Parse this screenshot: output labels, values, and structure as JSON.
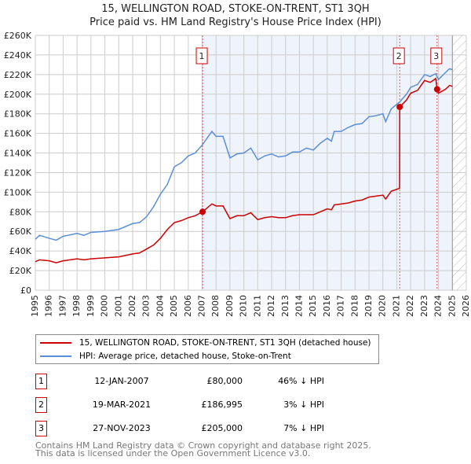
{
  "title": "15, WELLINGTON ROAD, STOKE-ON-TRENT, ST1 3QH",
  "subtitle": "Price paid vs. HM Land Registry's House Price Index (HPI)",
  "chart_data": {
    "type": "line",
    "xlim": [
      1995,
      2026
    ],
    "ylim": [
      0,
      260000
    ],
    "x_ticks": [
      "1995",
      "1996",
      "1997",
      "1998",
      "1999",
      "2000",
      "2001",
      "2002",
      "2003",
      "2004",
      "2005",
      "2006",
      "2007",
      "2008",
      "2009",
      "2010",
      "2011",
      "2012",
      "2013",
      "2014",
      "2015",
      "2016",
      "2017",
      "2018",
      "2019",
      "2020",
      "2021",
      "2022",
      "2023",
      "2024",
      "2025",
      "2026"
    ],
    "y_ticks": [
      "£0",
      "£20K",
      "£40K",
      "£60K",
      "£80K",
      "£100K",
      "£120K",
      "£140K",
      "£160K",
      "£180K",
      "£200K",
      "£220K",
      "£240K",
      "£260K"
    ],
    "grid": true,
    "shaded_region": [
      2007.03,
      2025.0
    ],
    "hatched_from": 2025.0,
    "series": [
      {
        "name": "15, WELLINGTON ROAD, STOKE-ON-TRENT, ST1 3QH (detached house)",
        "color": "#cc0000",
        "points": [
          [
            1995,
            29
          ],
          [
            1995.3,
            31
          ],
          [
            1996,
            30
          ],
          [
            1996.5,
            28
          ],
          [
            1997,
            30
          ],
          [
            1998,
            32
          ],
          [
            1998.5,
            31
          ],
          [
            1999,
            32
          ],
          [
            2000,
            33
          ],
          [
            2001,
            34
          ],
          [
            2002,
            37
          ],
          [
            2002.5,
            38
          ],
          [
            2003,
            42
          ],
          [
            2003.5,
            46
          ],
          [
            2004,
            53
          ],
          [
            2004.5,
            62
          ],
          [
            2005,
            69
          ],
          [
            2005.5,
            71
          ],
          [
            2006,
            74
          ],
          [
            2006.5,
            76
          ],
          [
            2007.03,
            80
          ],
          [
            2007.7,
            88
          ],
          [
            2008,
            86
          ],
          [
            2008.5,
            86
          ],
          [
            2009,
            73
          ],
          [
            2009.5,
            76
          ],
          [
            2010,
            76
          ],
          [
            2010.5,
            79
          ],
          [
            2011,
            72
          ],
          [
            2011.5,
            74
          ],
          [
            2012,
            75
          ],
          [
            2012.5,
            74
          ],
          [
            2013,
            74
          ],
          [
            2013.5,
            76
          ],
          [
            2014,
            77
          ],
          [
            2015,
            77
          ],
          [
            2015.5,
            80
          ],
          [
            2016,
            83
          ],
          [
            2016.3,
            82
          ],
          [
            2016.5,
            87
          ],
          [
            2017,
            88
          ],
          [
            2017.5,
            89
          ],
          [
            2018,
            91
          ],
          [
            2018.5,
            92
          ],
          [
            2019,
            95
          ],
          [
            2019.5,
            96
          ],
          [
            2020,
            97
          ],
          [
            2020.2,
            93
          ],
          [
            2020.6,
            101
          ],
          [
            2021.2,
            104
          ],
          [
            2021.21,
            187
          ],
          [
            2021.7,
            194
          ],
          [
            2022,
            201
          ],
          [
            2022.5,
            204
          ],
          [
            2023,
            214
          ],
          [
            2023.4,
            212
          ],
          [
            2023.8,
            216
          ],
          [
            2023.9,
            205
          ],
          [
            2024,
            201
          ],
          [
            2024.5,
            205
          ],
          [
            2024.8,
            209
          ],
          [
            2025,
            208
          ]
        ]
      },
      {
        "name": "HPI: Average price, detached house, Stoke-on-Trent",
        "color": "#5b8fd4",
        "points": [
          [
            1995,
            52
          ],
          [
            1995.3,
            56
          ],
          [
            1996,
            53
          ],
          [
            1996.5,
            51
          ],
          [
            1997,
            55
          ],
          [
            1998,
            58
          ],
          [
            1998.5,
            56
          ],
          [
            1999,
            59
          ],
          [
            2000,
            60
          ],
          [
            2001,
            62
          ],
          [
            2002,
            68
          ],
          [
            2002.5,
            69
          ],
          [
            2003,
            75
          ],
          [
            2003.5,
            85
          ],
          [
            2004,
            98
          ],
          [
            2004.5,
            108
          ],
          [
            2005,
            126
          ],
          [
            2005.5,
            130
          ],
          [
            2006,
            137
          ],
          [
            2006.5,
            140
          ],
          [
            2007,
            148
          ],
          [
            2007.7,
            162
          ],
          [
            2008,
            157
          ],
          [
            2008.5,
            157
          ],
          [
            2009,
            135
          ],
          [
            2009.5,
            139
          ],
          [
            2010,
            140
          ],
          [
            2010.5,
            145
          ],
          [
            2011,
            133
          ],
          [
            2011.5,
            137
          ],
          [
            2012,
            139
          ],
          [
            2012.5,
            136
          ],
          [
            2013,
            137
          ],
          [
            2013.5,
            141
          ],
          [
            2014,
            141
          ],
          [
            2014.5,
            145
          ],
          [
            2015,
            143
          ],
          [
            2015.5,
            150
          ],
          [
            2016,
            155
          ],
          [
            2016.3,
            152
          ],
          [
            2016.5,
            162
          ],
          [
            2017,
            162
          ],
          [
            2017.5,
            166
          ],
          [
            2018,
            169
          ],
          [
            2018.5,
            170
          ],
          [
            2019,
            177
          ],
          [
            2019.5,
            178
          ],
          [
            2020,
            180
          ],
          [
            2020.2,
            172
          ],
          [
            2020.6,
            185
          ],
          [
            2021.2,
            192
          ],
          [
            2021.7,
            200
          ],
          [
            2022,
            207
          ],
          [
            2022.5,
            210
          ],
          [
            2023,
            220
          ],
          [
            2023.4,
            218
          ],
          [
            2023.8,
            221
          ],
          [
            2024,
            215
          ],
          [
            2024.5,
            222
          ],
          [
            2024.8,
            226
          ],
          [
            2025,
            225
          ]
        ]
      }
    ],
    "sales": [
      {
        "label": "1",
        "x": 2007.03,
        "y": 80
      },
      {
        "label": "2",
        "x": 2021.21,
        "y": 187
      },
      {
        "label": "3",
        "x": 2023.9,
        "y": 205
      }
    ]
  },
  "legend": {
    "red": "15, WELLINGTON ROAD, STOKE-ON-TRENT, ST1 3QH (detached house)",
    "blue": "HPI: Average price, detached house, Stoke-on-Trent"
  },
  "transactions": [
    {
      "num": "1",
      "date": "12-JAN-2007",
      "price": "£80,000",
      "hpi": "46% ↓ HPI"
    },
    {
      "num": "2",
      "date": "19-MAR-2021",
      "price": "£186,995",
      "hpi": "3% ↓ HPI"
    },
    {
      "num": "3",
      "date": "27-NOV-2023",
      "price": "£205,000",
      "hpi": "7% ↓ HPI"
    }
  ],
  "footer": [
    "Contains HM Land Registry data © Crown copyright and database right 2025.",
    "This data is licensed under the Open Government Licence v3.0."
  ]
}
